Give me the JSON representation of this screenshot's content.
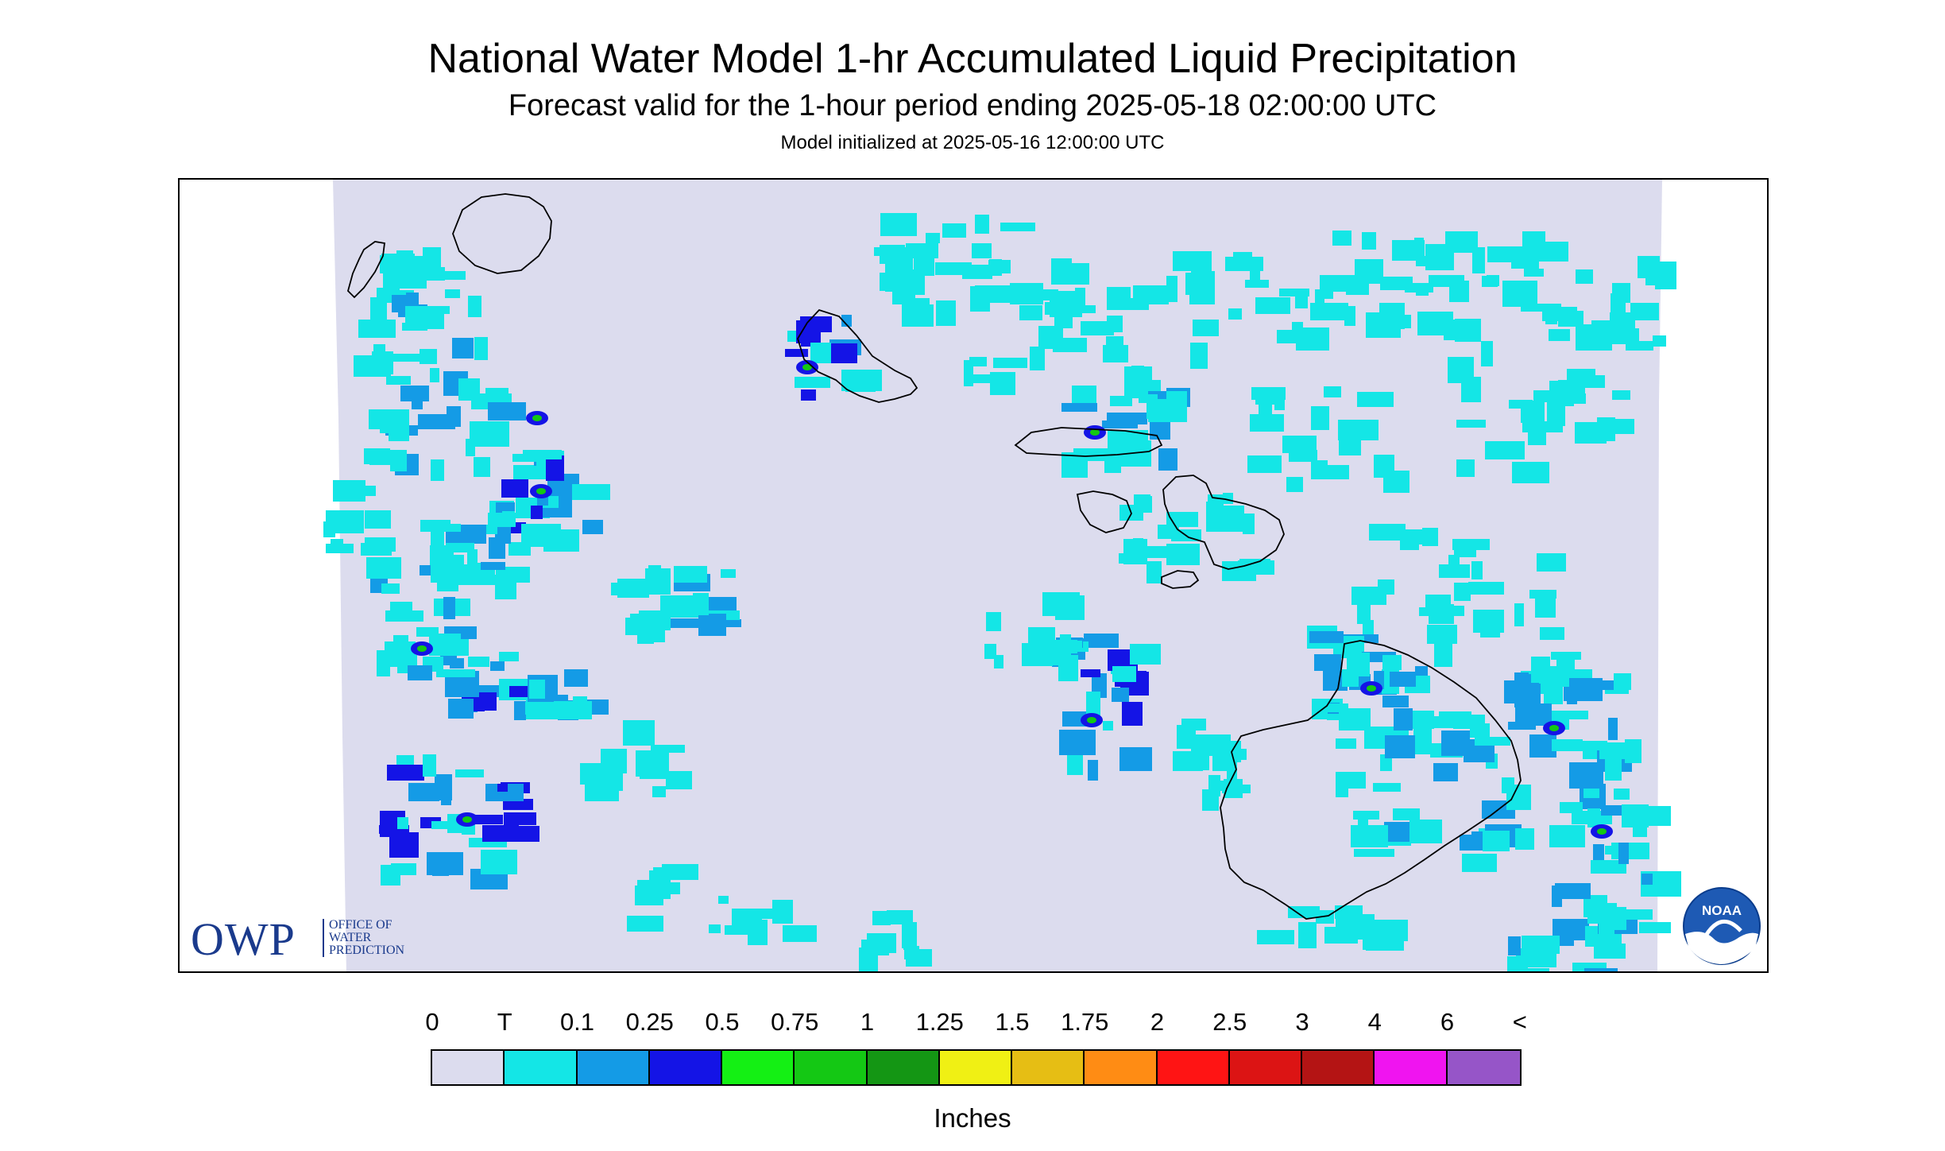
{
  "header": {
    "title": "National Water Model 1-hr Accumulated Liquid Precipitation",
    "subtitle": "Forecast valid for the 1-hour period ending 2025-05-18 02:00:00 UTC",
    "init": "Model initialized at 2025-05-16 12:00:00 UTC"
  },
  "colors": {
    "background_nodata": "#ffffff",
    "background_zero": "#dcdcee",
    "coastline": "#000000"
  },
  "legend": {
    "unit": "Inches",
    "ticks": [
      "0",
      "T",
      "0.1",
      "0.25",
      "0.5",
      "0.75",
      "1",
      "1.25",
      "1.5",
      "1.75",
      "2",
      "2.5",
      "3",
      "4",
      "6",
      "<"
    ],
    "swatches": [
      "#dcdcee",
      "#14e6e6",
      "#149be6",
      "#1414e6",
      "#14f014",
      "#14c814",
      "#149614",
      "#f0f014",
      "#e6be14",
      "#ff8c14",
      "#ff1414",
      "#dc1414",
      "#b41414",
      "#f014f0",
      "#9655c8"
    ]
  },
  "logos": {
    "owp": {
      "big": "OWP",
      "small": [
        "OFFICE OF",
        "WATER",
        "PREDICTION"
      ]
    },
    "noaa": {
      "text": "NOAA"
    }
  }
}
